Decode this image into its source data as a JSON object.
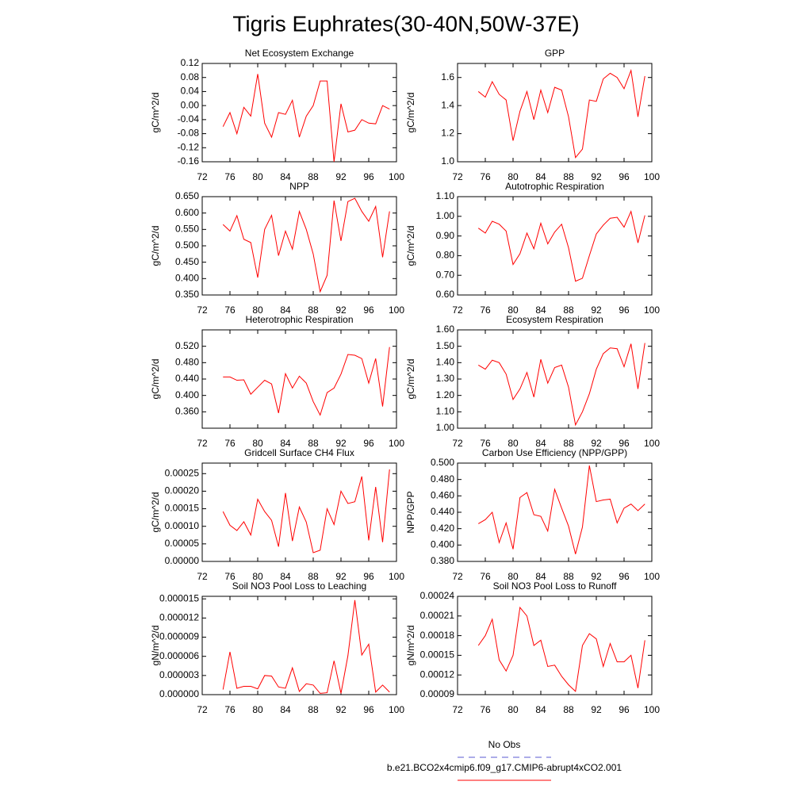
{
  "title": "Tigris Euphrates(30-40N,50W-37E)",
  "legend": [
    {
      "name": "No Obs",
      "color": "#5a5ad2",
      "dash": true
    },
    {
      "name": "b.e21.BCO2x4cmip6.f09_g17.CMIP6-abrupt4xCO2.001",
      "color": "#ff0000",
      "dash": false
    }
  ],
  "chart_data": [
    {
      "type": "line",
      "title": "Net Ecosystem Exchange",
      "ylabel": "gC/m^2/d",
      "x": [
        75,
        76,
        77,
        78,
        79,
        80,
        81,
        82,
        83,
        84,
        85,
        86,
        87,
        88,
        89,
        90,
        91,
        92,
        93,
        94,
        95,
        96,
        97,
        98,
        99
      ],
      "series": [
        {
          "color": "#ff0000",
          "values": [
            -0.06,
            -0.02,
            -0.08,
            -0.005,
            -0.03,
            0.09,
            -0.05,
            -0.09,
            -0.02,
            -0.025,
            0.015,
            -0.09,
            -0.03,
            0.0,
            0.07,
            0.07,
            -0.16,
            0.005,
            -0.075,
            -0.07,
            -0.04,
            -0.05,
            -0.052,
            0.0,
            -0.01
          ]
        }
      ],
      "xlim": [
        72,
        100
      ],
      "xticks": [
        72,
        76,
        80,
        84,
        88,
        92,
        96,
        100
      ],
      "ylim": [
        -0.16,
        0.12
      ],
      "yticks": [
        {
          "value": -0.16,
          "label": "-0.16"
        },
        {
          "value": -0.12,
          "label": "-0.12"
        },
        {
          "value": -0.08,
          "label": "-0.08"
        },
        {
          "value": -0.04,
          "label": "-0.04"
        },
        {
          "value": 0,
          "label": "0.00"
        },
        0.04,
        0.08,
        0.12
      ]
    },
    {
      "type": "line",
      "title": "GPP",
      "ylabel": "gC/m^2/d",
      "x": [
        75,
        76,
        77,
        78,
        79,
        80,
        81,
        82,
        83,
        84,
        85,
        86,
        87,
        88,
        89,
        90,
        91,
        92,
        93,
        94,
        95,
        96,
        97,
        98,
        99
      ],
      "series": [
        {
          "color": "#ff0000",
          "values": [
            1.5,
            1.46,
            1.57,
            1.48,
            1.44,
            1.15,
            1.36,
            1.5,
            1.3,
            1.51,
            1.35,
            1.53,
            1.51,
            1.32,
            1.03,
            1.09,
            1.44,
            1.43,
            1.59,
            1.63,
            1.6,
            1.52,
            1.65,
            1.32,
            1.61
          ]
        }
      ],
      "xlim": [
        72,
        100
      ],
      "xticks": [
        72,
        76,
        80,
        84,
        88,
        92,
        96,
        100
      ],
      "ylim": [
        1.0,
        1.7
      ],
      "yticks": [
        {
          "value": 1,
          "label": "1.0"
        },
        1.2,
        1.4,
        1.6
      ]
    },
    {
      "type": "line",
      "title": "NPP",
      "ylabel": "gC/m^2/d",
      "x": [
        75,
        76,
        77,
        78,
        79,
        80,
        81,
        82,
        83,
        84,
        85,
        86,
        87,
        88,
        89,
        90,
        91,
        92,
        93,
        94,
        95,
        96,
        97,
        98,
        99
      ],
      "series": [
        {
          "color": "#ff0000",
          "values": [
            0.565,
            0.545,
            0.592,
            0.52,
            0.51,
            0.403,
            0.55,
            0.593,
            0.47,
            0.545,
            0.49,
            0.605,
            0.55,
            0.475,
            0.36,
            0.41,
            0.638,
            0.515,
            0.635,
            0.645,
            0.605,
            0.575,
            0.62,
            0.465,
            0.605
          ]
        }
      ],
      "xlim": [
        72,
        100
      ],
      "xticks": [
        72,
        76,
        80,
        84,
        88,
        92,
        96,
        100
      ],
      "ylim": [
        0.35,
        0.65
      ],
      "yticks": [
        {
          "value": 0.35,
          "label": "0.350"
        },
        {
          "value": 0.4,
          "label": "0.400"
        },
        {
          "value": 0.45,
          "label": "0.450"
        },
        {
          "value": 0.5,
          "label": "0.500"
        },
        {
          "value": 0.55,
          "label": "0.550"
        },
        {
          "value": 0.6,
          "label": "0.600"
        },
        {
          "value": 0.65,
          "label": "0.650"
        }
      ]
    },
    {
      "type": "line",
      "title": "Autotrophic Respiration",
      "ylabel": "gC/m^2/d",
      "x": [
        75,
        76,
        77,
        78,
        79,
        80,
        81,
        82,
        83,
        84,
        85,
        86,
        87,
        88,
        89,
        90,
        91,
        92,
        93,
        94,
        95,
        96,
        97,
        98,
        99
      ],
      "series": [
        {
          "color": "#ff0000",
          "values": [
            0.94,
            0.915,
            0.975,
            0.96,
            0.925,
            0.755,
            0.81,
            0.915,
            0.835,
            0.965,
            0.86,
            0.92,
            0.96,
            0.84,
            0.67,
            0.685,
            0.8,
            0.91,
            0.955,
            0.99,
            0.995,
            0.945,
            1.025,
            0.865,
            1.005
          ]
        }
      ],
      "xlim": [
        72,
        100
      ],
      "xticks": [
        72,
        76,
        80,
        84,
        88,
        92,
        96,
        100
      ],
      "ylim": [
        0.6,
        1.1
      ],
      "yticks": [
        {
          "value": 0.6,
          "label": "0.60"
        },
        {
          "value": 0.7,
          "label": "0.70"
        },
        {
          "value": 0.8,
          "label": "0.80"
        },
        {
          "value": 0.9,
          "label": "0.90"
        },
        {
          "value": 1,
          "label": "1.00"
        },
        {
          "value": 1.1,
          "label": "1.10"
        }
      ]
    },
    {
      "type": "line",
      "title": "Heterotrophic Respiration",
      "ylabel": "gC/m^2/d",
      "x": [
        75,
        76,
        77,
        78,
        79,
        80,
        81,
        82,
        83,
        84,
        85,
        86,
        87,
        88,
        89,
        90,
        91,
        92,
        93,
        94,
        95,
        96,
        97,
        98,
        99
      ],
      "series": [
        {
          "color": "#ff0000",
          "values": [
            0.445,
            0.445,
            0.437,
            0.438,
            0.403,
            0.42,
            0.437,
            0.428,
            0.357,
            0.453,
            0.418,
            0.447,
            0.43,
            0.385,
            0.352,
            0.407,
            0.418,
            0.452,
            0.5,
            0.498,
            0.49,
            0.43,
            0.49,
            0.373,
            0.518
          ]
        }
      ],
      "xlim": [
        72,
        100
      ],
      "xticks": [
        72,
        76,
        80,
        84,
        88,
        92,
        96,
        100
      ],
      "ylim": [
        0.32,
        0.56
      ],
      "yticks": [
        {
          "value": 0.36,
          "label": "0.360"
        },
        {
          "value": 0.4,
          "label": "0.400"
        },
        {
          "value": 0.44,
          "label": "0.440"
        },
        {
          "value": 0.48,
          "label": "0.480"
        },
        {
          "value": 0.52,
          "label": "0.520"
        }
      ]
    },
    {
      "type": "line",
      "title": "Ecosystem Respiration",
      "ylabel": "gC/m^2/d",
      "x": [
        75,
        76,
        77,
        78,
        79,
        80,
        81,
        82,
        83,
        84,
        85,
        86,
        87,
        88,
        89,
        90,
        91,
        92,
        93,
        94,
        95,
        96,
        97,
        98,
        99
      ],
      "series": [
        {
          "color": "#ff0000",
          "values": [
            1.385,
            1.36,
            1.415,
            1.4,
            1.33,
            1.175,
            1.24,
            1.34,
            1.19,
            1.42,
            1.275,
            1.37,
            1.385,
            1.25,
            1.02,
            1.1,
            1.21,
            1.36,
            1.455,
            1.49,
            1.485,
            1.375,
            1.515,
            1.24,
            1.52
          ]
        }
      ],
      "xlim": [
        72,
        100
      ],
      "xticks": [
        72,
        76,
        80,
        84,
        88,
        92,
        96,
        100
      ],
      "ylim": [
        1.0,
        1.6
      ],
      "yticks": [
        {
          "value": 1,
          "label": "1.00"
        },
        {
          "value": 1.1,
          "label": "1.10"
        },
        {
          "value": 1.2,
          "label": "1.20"
        },
        {
          "value": 1.3,
          "label": "1.30"
        },
        {
          "value": 1.4,
          "label": "1.40"
        },
        {
          "value": 1.5,
          "label": "1.50"
        },
        {
          "value": 1.6,
          "label": "1.60"
        }
      ]
    },
    {
      "type": "line",
      "title": "Gridcell Surface CH4 Flux",
      "ylabel": "gC/m^2/d",
      "x": [
        75,
        76,
        77,
        78,
        79,
        80,
        81,
        82,
        83,
        84,
        85,
        86,
        87,
        88,
        89,
        90,
        91,
        92,
        93,
        94,
        95,
        96,
        97,
        98,
        99
      ],
      "series": [
        {
          "color": "#ff0000",
          "values": [
            0.000142,
            0.000103,
            8.8e-05,
            0.000113,
            7.5e-05,
            0.000177,
            0.000142,
            0.000117,
            4.2e-05,
            0.000195,
            5.8e-05,
            0.000155,
            0.000112,
            2.5e-05,
            3.2e-05,
            0.00015,
            0.000105,
            0.0002,
            0.000165,
            0.00017,
            0.000242,
            6e-05,
            0.000212,
            5.5e-05,
            0.000262
          ]
        }
      ],
      "xlim": [
        72,
        100
      ],
      "xticks": [
        72,
        76,
        80,
        84,
        88,
        92,
        96,
        100
      ],
      "ylim": [
        0,
        0.00028
      ],
      "yticks": [
        {
          "value": 0,
          "label": "0.00000"
        },
        5e-05,
        {
          "value": 0.0001,
          "label": "0.00010"
        },
        0.00015,
        {
          "value": 0.0002,
          "label": "0.00020"
        },
        0.00025
      ]
    },
    {
      "type": "line",
      "title": "Carbon Use Efficiency (NPP/GPP)",
      "ylabel": "NPP/GPP",
      "x": [
        75,
        76,
        77,
        78,
        79,
        80,
        81,
        82,
        83,
        84,
        85,
        86,
        87,
        88,
        89,
        90,
        91,
        92,
        93,
        94,
        95,
        96,
        97,
        98,
        99
      ],
      "series": [
        {
          "color": "#ff0000",
          "values": [
            0.426,
            0.431,
            0.44,
            0.403,
            0.427,
            0.395,
            0.458,
            0.464,
            0.437,
            0.435,
            0.417,
            0.468,
            0.445,
            0.423,
            0.389,
            0.422,
            0.497,
            0.453,
            0.455,
            0.456,
            0.427,
            0.445,
            0.45,
            0.442,
            0.45
          ]
        }
      ],
      "xlim": [
        72,
        100
      ],
      "xticks": [
        72,
        76,
        80,
        84,
        88,
        92,
        96,
        100
      ],
      "ylim": [
        0.38,
        0.5
      ],
      "yticks": [
        {
          "value": 0.38,
          "label": "0.380"
        },
        {
          "value": 0.4,
          "label": "0.400"
        },
        {
          "value": 0.42,
          "label": "0.420"
        },
        {
          "value": 0.44,
          "label": "0.440"
        },
        {
          "value": 0.46,
          "label": "0.460"
        },
        {
          "value": 0.48,
          "label": "0.480"
        },
        {
          "value": 0.5,
          "label": "0.500"
        }
      ]
    },
    {
      "type": "line",
      "title": "Soil NO3 Pool Loss to Leaching",
      "ylabel": "gN/m^2/d",
      "x": [
        75,
        76,
        77,
        78,
        79,
        80,
        81,
        82,
        83,
        84,
        85,
        86,
        87,
        88,
        89,
        90,
        91,
        92,
        93,
        94,
        95,
        96,
        97,
        98,
        99
      ],
      "series": [
        {
          "color": "#ff0000",
          "values": [
            8e-07,
            6.7e-06,
            1e-06,
            1.3e-06,
            1.3e-06,
            9e-07,
            3e-06,
            2.9e-06,
            1.2e-06,
            1e-06,
            4.2e-06,
            5e-07,
            1.7e-06,
            1.5e-06,
            2e-07,
            3e-07,
            5.3e-06,
            2e-07,
            6.1e-06,
            1.48e-05,
            6.2e-06,
            7.9e-06,
            4e-07,
            1.5e-06,
            4e-07
          ]
        }
      ],
      "xlim": [
        72,
        100
      ],
      "xticks": [
        72,
        76,
        80,
        84,
        88,
        92,
        96,
        100
      ],
      "ylim": [
        0,
        1.54e-05
      ],
      "yticks": [
        {
          "value": 0,
          "label": "0.000000"
        },
        3e-06,
        6e-06,
        9e-06,
        1.2e-05,
        1.5e-05
      ]
    },
    {
      "type": "line",
      "title": "Soil NO3 Pool Loss to Runoff",
      "ylabel": "gN/m^2/d",
      "x": [
        75,
        76,
        77,
        78,
        79,
        80,
        81,
        82,
        83,
        84,
        85,
        86,
        87,
        88,
        89,
        90,
        91,
        92,
        93,
        94,
        95,
        96,
        97,
        98,
        99
      ],
      "series": [
        {
          "color": "#ff0000",
          "values": [
            0.000165,
            0.00018,
            0.000205,
            0.000143,
            0.000126,
            0.00015,
            0.000223,
            0.00021,
            0.000165,
            0.000173,
            0.000133,
            0.000135,
            0.000118,
            0.000105,
            9.5e-05,
            0.000165,
            0.000183,
            0.000175,
            0.000133,
            0.000168,
            0.00014,
            0.00014,
            0.00015,
            0.0001,
            0.000173
          ]
        }
      ],
      "xlim": [
        72,
        100
      ],
      "xticks": [
        72,
        76,
        80,
        84,
        88,
        92,
        96,
        100
      ],
      "ylim": [
        9e-05,
        0.00024
      ],
      "yticks": [
        9e-05,
        0.00012,
        0.00015,
        0.00018,
        0.00021,
        0.00024
      ]
    }
  ]
}
